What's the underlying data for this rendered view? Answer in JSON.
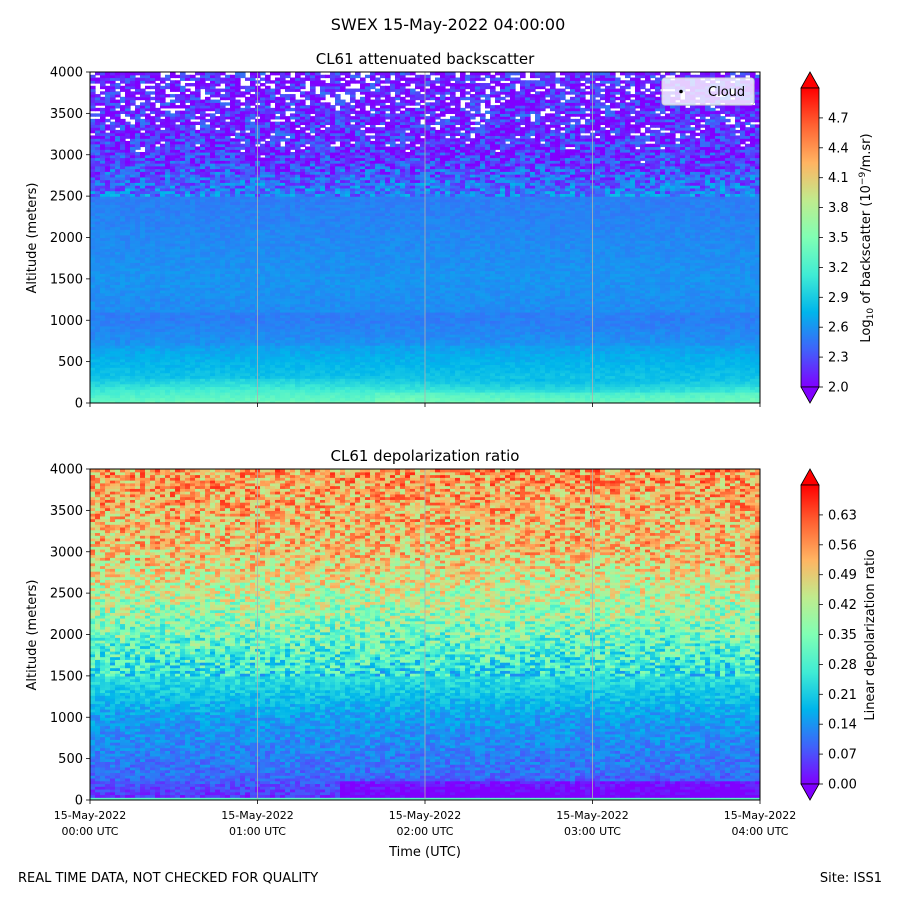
{
  "figure": {
    "suptitle": "SWEX 15-May-2022 04:00:00",
    "footer_left": "REAL TIME DATA, NOT CHECKED FOR QUALITY",
    "footer_right": "Site: ISS1"
  },
  "chart_data": [
    {
      "type": "heatmap",
      "title": "CL61 attenuated backscatter",
      "ylabel": "Altitude (meters)",
      "xlabel": "",
      "ylim": [
        0,
        4000
      ],
      "yticks": [
        0,
        500,
        1000,
        1500,
        2000,
        2500,
        3000,
        3500,
        4000
      ],
      "xlim_hours": [
        0,
        4
      ],
      "xticks_hours": [
        0,
        1,
        2,
        3,
        4
      ],
      "show_xticklabels": false,
      "grid": "vertical",
      "legend": {
        "label": "Cloud",
        "placement": "top-right"
      },
      "colorbar": {
        "label_prefix": "Log",
        "label_sub": "10",
        "label_mid": " of backscatter (10",
        "label_sup": "−9",
        "label_suffix": "/m.sr)",
        "range": [
          2.0,
          5.0
        ],
        "ticks": [
          2.0,
          2.3,
          2.6,
          2.9,
          3.2,
          3.5,
          3.8,
          4.1,
          4.4,
          4.7
        ],
        "tick_labels": [
          "2.0",
          "2.3",
          "2.6",
          "2.9",
          "3.2",
          "3.5",
          "3.8",
          "4.1",
          "4.4",
          "4.7"
        ]
      },
      "field_description_by_altitude": [
        {
          "alt": 0,
          "value": 3.35
        },
        {
          "alt": 150,
          "value": 3.1
        },
        {
          "alt": 300,
          "value": 2.85
        },
        {
          "alt": 700,
          "value": 2.65
        },
        {
          "alt": 1000,
          "value": 2.55
        },
        {
          "alt": 1500,
          "value": 2.6
        },
        {
          "alt": 2500,
          "value": 2.5
        },
        {
          "alt": 3000,
          "value": 2.2
        },
        {
          "alt": 4000,
          "value": 2.1
        }
      ]
    },
    {
      "type": "heatmap",
      "title": "CL61 depolarization ratio",
      "ylabel": "Altitude (meters)",
      "xlabel": "Time (UTC)",
      "ylim": [
        0,
        4000
      ],
      "yticks": [
        0,
        500,
        1000,
        1500,
        2000,
        2500,
        3000,
        3500,
        4000
      ],
      "xlim_hours": [
        0,
        4
      ],
      "xticks_hours": [
        0,
        1,
        2,
        3,
        4
      ],
      "xtick_labels": [
        [
          "15-May-2022",
          "00:00 UTC"
        ],
        [
          "15-May-2022",
          "01:00 UTC"
        ],
        [
          "15-May-2022",
          "02:00 UTC"
        ],
        [
          "15-May-2022",
          "03:00 UTC"
        ],
        [
          "15-May-2022",
          "04:00 UTC"
        ]
      ],
      "show_xticklabels": true,
      "grid": "vertical",
      "colorbar": {
        "label": "Linear depolarization ratio",
        "range": [
          0.0,
          0.7
        ],
        "ticks": [
          0.0,
          0.07,
          0.14,
          0.21,
          0.28,
          0.35,
          0.42,
          0.49,
          0.56,
          0.63
        ],
        "tick_labels": [
          "0.00",
          "0.07",
          "0.14",
          "0.21",
          "0.28",
          "0.35",
          "0.42",
          "0.49",
          "0.56",
          "0.63"
        ]
      },
      "field_description_by_altitude": [
        {
          "alt": 0,
          "value": 0.03
        },
        {
          "alt": 300,
          "value": 0.1
        },
        {
          "alt": 1000,
          "value": 0.15
        },
        {
          "alt": 1500,
          "value": 0.24
        },
        {
          "alt": 2000,
          "value": 0.33
        },
        {
          "alt": 2500,
          "value": 0.42
        },
        {
          "alt": 3000,
          "value": 0.5
        },
        {
          "alt": 4000,
          "value": 0.55
        }
      ]
    }
  ]
}
